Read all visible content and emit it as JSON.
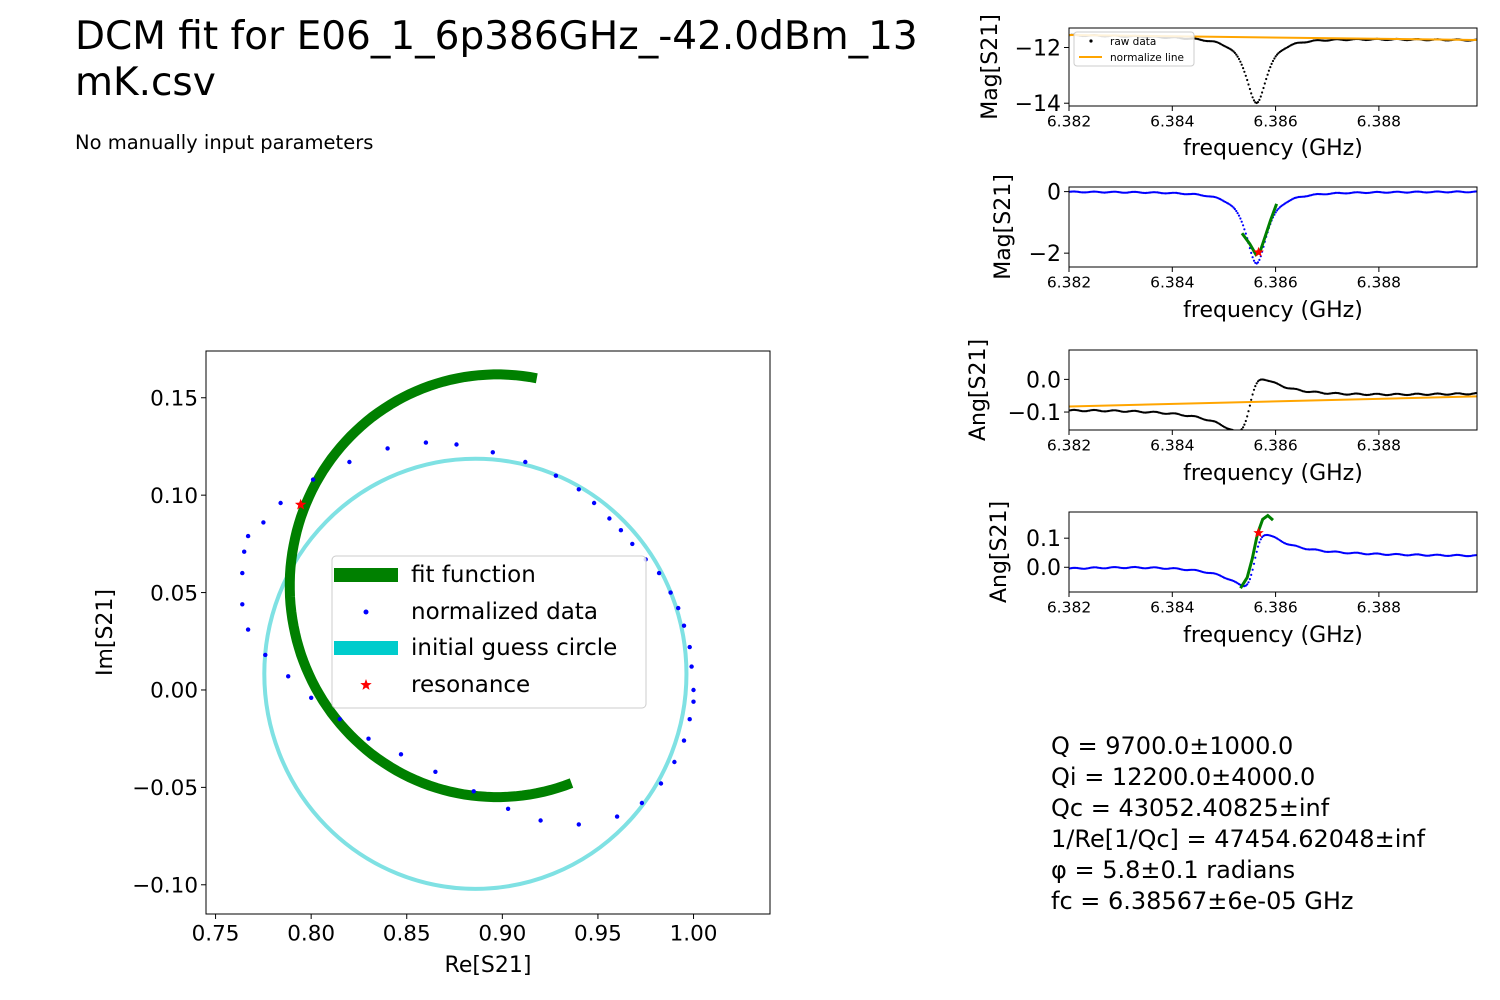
{
  "header": {
    "title": "DCM fit for E06_1_6p386GHz_-42.0dBm_13\nmK.csv",
    "subtitle": "No manually input parameters"
  },
  "stats": {
    "lines": [
      "Q = 9700.0±1000.0",
      "Qi = 12200.0±4000.0",
      "Qc = 43052.40825±inf",
      "1/Re[1/Qc] = 47454.62048±inf",
      "φ = 5.8±0.1 radians",
      "fc = 6.38567±6e-05 GHz"
    ]
  },
  "colors": {
    "fit": "#008000",
    "normalized": "#0000ff",
    "guess": "#00cccc",
    "guess_line": "#7fe1e3",
    "resonance": "#ff0000",
    "raw": "#000000",
    "normalize_line": "#ffa500"
  },
  "chart_data": [
    {
      "id": "circle",
      "type": "scatter",
      "xlabel": "Re[S21]",
      "ylabel": "Im[S21]",
      "xlim": [
        0.745,
        1.04
      ],
      "ylim": [
        -0.115,
        0.174
      ],
      "xticks": [
        0.75,
        0.8,
        0.85,
        0.9,
        0.95,
        1.0
      ],
      "xtick_labels": [
        "0.75",
        "0.80",
        "0.85",
        "0.90",
        "0.95",
        "1.00"
      ],
      "yticks": [
        -0.1,
        -0.05,
        0.0,
        0.05,
        0.1,
        0.15
      ],
      "ytick_labels": [
        "−0.10",
        "−0.05",
        "0.00",
        "0.05",
        "0.10",
        "0.15"
      ],
      "legend": {
        "placement": "center",
        "entries": [
          "fit function",
          "normalized data",
          "initial guess circle",
          "resonance"
        ]
      },
      "fit_arc": {
        "center": [
          0.8973,
          0.0535
        ],
        "radius": 0.1085,
        "from_deg": 79,
        "to_deg": 292
      },
      "guess_circle": {
        "center": [
          0.8859,
          0.0083
        ],
        "radius": 0.1104
      },
      "resonance": [
        0.7945,
        0.0951
      ],
      "normalized_points": [
        [
          1.0,
          0.0
        ],
        [
          0.999,
          0.012
        ],
        [
          0.998,
          0.022
        ],
        [
          0.995,
          0.033
        ],
        [
          0.992,
          0.042
        ],
        [
          0.988,
          0.05
        ],
        [
          0.982,
          0.06
        ],
        [
          0.975,
          0.067
        ],
        [
          0.968,
          0.075
        ],
        [
          0.962,
          0.082
        ],
        [
          0.956,
          0.088
        ],
        [
          0.948,
          0.096
        ],
        [
          0.94,
          0.103
        ],
        [
          0.928,
          0.11
        ],
        [
          0.912,
          0.117
        ],
        [
          0.895,
          0.122
        ],
        [
          0.876,
          0.126
        ],
        [
          0.86,
          0.127
        ],
        [
          0.84,
          0.124
        ],
        [
          0.82,
          0.117
        ],
        [
          0.801,
          0.108
        ],
        [
          0.784,
          0.096
        ],
        [
          0.775,
          0.086
        ],
        [
          0.767,
          0.079
        ],
        [
          0.765,
          0.071
        ],
        [
          0.764,
          0.06
        ],
        [
          0.764,
          0.044
        ],
        [
          0.767,
          0.031
        ],
        [
          0.776,
          0.018
        ],
        [
          0.788,
          0.007
        ],
        [
          0.8,
          -0.004
        ],
        [
          0.815,
          -0.015
        ],
        [
          0.83,
          -0.025
        ],
        [
          0.847,
          -0.033
        ],
        [
          0.865,
          -0.042
        ],
        [
          0.885,
          -0.052
        ],
        [
          0.903,
          -0.061
        ],
        [
          0.92,
          -0.067
        ],
        [
          0.94,
          -0.069
        ],
        [
          0.96,
          -0.065
        ],
        [
          0.973,
          -0.058
        ],
        [
          0.983,
          -0.048
        ],
        [
          0.99,
          -0.037
        ],
        [
          0.995,
          -0.026
        ],
        [
          0.998,
          -0.015
        ],
        [
          1.0,
          -0.006
        ]
      ]
    },
    {
      "id": "raw_mag",
      "type": "line",
      "xlabel": "frequency (GHz)",
      "ylabel": "Mag[S21]",
      "xlim": [
        6.382,
        6.3899
      ],
      "ylim": [
        -14.1,
        -11.3
      ],
      "xticks": [
        6.382,
        6.384,
        6.386,
        6.388
      ],
      "xtick_labels": [
        "6.382",
        "6.384",
        "6.386",
        "6.388"
      ],
      "yticks": [
        -14,
        -12
      ],
      "ytick_labels": [
        "−14",
        "−12"
      ],
      "legend": {
        "placement": "upper-left",
        "entries": [
          "raw data",
          "normalize line"
        ]
      },
      "normalize_line": [
        [
          6.382,
          -11.55
        ],
        [
          6.3899,
          -11.73
        ]
      ],
      "offset": -11.6,
      "depth": 2.38,
      "scale": 0.6,
      "fc": 6.38563,
      "hw": 0.00024
    },
    {
      "id": "norm_mag",
      "type": "line",
      "xlabel": "frequency (GHz)",
      "ylabel": "Mag[S21]",
      "xlim": [
        6.382,
        6.3899
      ],
      "ylim": [
        -2.45,
        0.15
      ],
      "xticks": [
        6.382,
        6.384,
        6.386,
        6.388
      ],
      "xtick_labels": [
        "6.382",
        "6.384",
        "6.386",
        "6.388"
      ],
      "yticks": [
        -2,
        0
      ],
      "ytick_labels": [
        "−2",
        "0"
      ],
      "depth": 2.35,
      "fc": 6.38563,
      "hw": 0.00024,
      "fit_curve": [
        [
          6.38535,
          -1.35
        ],
        [
          6.3855,
          -1.7
        ],
        [
          6.38562,
          -2.05
        ],
        [
          6.3857,
          -1.95
        ],
        [
          6.3858,
          -1.45
        ],
        [
          6.3859,
          -0.95
        ],
        [
          6.38602,
          -0.4
        ]
      ],
      "resonance": [
        6.38567,
        -1.97
      ]
    },
    {
      "id": "raw_ang",
      "type": "line",
      "xlabel": "frequency (GHz)",
      "ylabel": "Ang[S21]",
      "xlim": [
        6.382,
        6.3899
      ],
      "ylim": [
        -0.155,
        0.09
      ],
      "xticks": [
        6.382,
        6.384,
        6.386,
        6.388
      ],
      "xtick_labels": [
        "6.382",
        "6.384",
        "6.386",
        "6.388"
      ],
      "yticks": [
        -0.1,
        0.0
      ],
      "ytick_labels": [
        "−0.1",
        "0.0"
      ],
      "normalize_line": [
        [
          6.382,
          -0.083
        ],
        [
          6.3899,
          -0.052
        ]
      ],
      "fc": 6.3855,
      "amplitude": 0.088,
      "hw": 0.00025
    },
    {
      "id": "norm_ang",
      "type": "line",
      "xlabel": "frequency (GHz)",
      "ylabel": "Ang[S21]",
      "xlim": [
        6.382,
        6.3899
      ],
      "ylim": [
        -0.085,
        0.19
      ],
      "xticks": [
        6.382,
        6.384,
        6.386,
        6.388
      ],
      "xtick_labels": [
        "6.382",
        "6.384",
        "6.386",
        "6.388"
      ],
      "yticks": [
        0.0,
        0.1
      ],
      "ytick_labels": [
        "0.0",
        "0.1"
      ],
      "fc": 6.3856,
      "amplitude": 0.103,
      "hw": 0.00022,
      "base": 0.045,
      "fit_curve": [
        [
          6.38532,
          -0.072
        ],
        [
          6.38545,
          -0.035
        ],
        [
          6.38555,
          0.03
        ],
        [
          6.38565,
          0.115
        ],
        [
          6.38575,
          0.165
        ],
        [
          6.38585,
          0.178
        ],
        [
          6.38595,
          0.162
        ]
      ],
      "resonance": [
        6.38567,
        0.118
      ]
    }
  ]
}
